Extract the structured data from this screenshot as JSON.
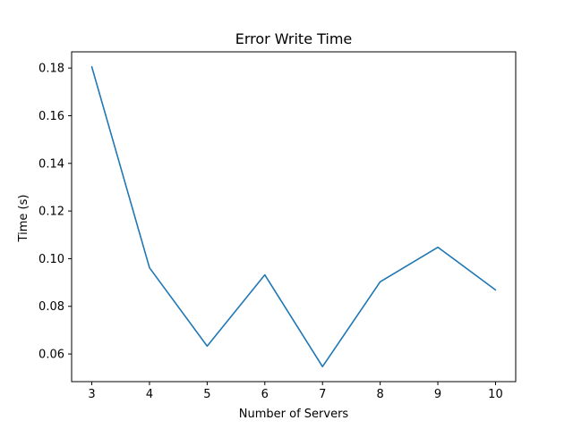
{
  "chart_data": {
    "type": "line",
    "title": "Error Write Time",
    "xlabel": "Number of Servers",
    "ylabel": "Time (s)",
    "x": [
      3,
      4,
      5,
      6,
      7,
      8,
      9,
      10
    ],
    "series": [
      {
        "values": [
          0.1805,
          0.0962,
          0.0633,
          0.0932,
          0.0547,
          0.0903,
          0.1048,
          0.0869
        ],
        "color": "#1f77b4"
      }
    ],
    "xlim": [
      2.65,
      10.35
    ],
    "ylim": [
      0.0484,
      0.1868
    ],
    "xticks": [
      3,
      4,
      5,
      6,
      7,
      8,
      9,
      10
    ],
    "yticks": [
      0.06,
      0.08,
      0.1,
      0.12,
      0.14,
      0.16,
      0.18
    ],
    "ytick_labels": [
      "0.06",
      "0.08",
      "0.10",
      "0.12",
      "0.14",
      "0.16",
      "0.18"
    ],
    "grid": false,
    "legend": false
  }
}
